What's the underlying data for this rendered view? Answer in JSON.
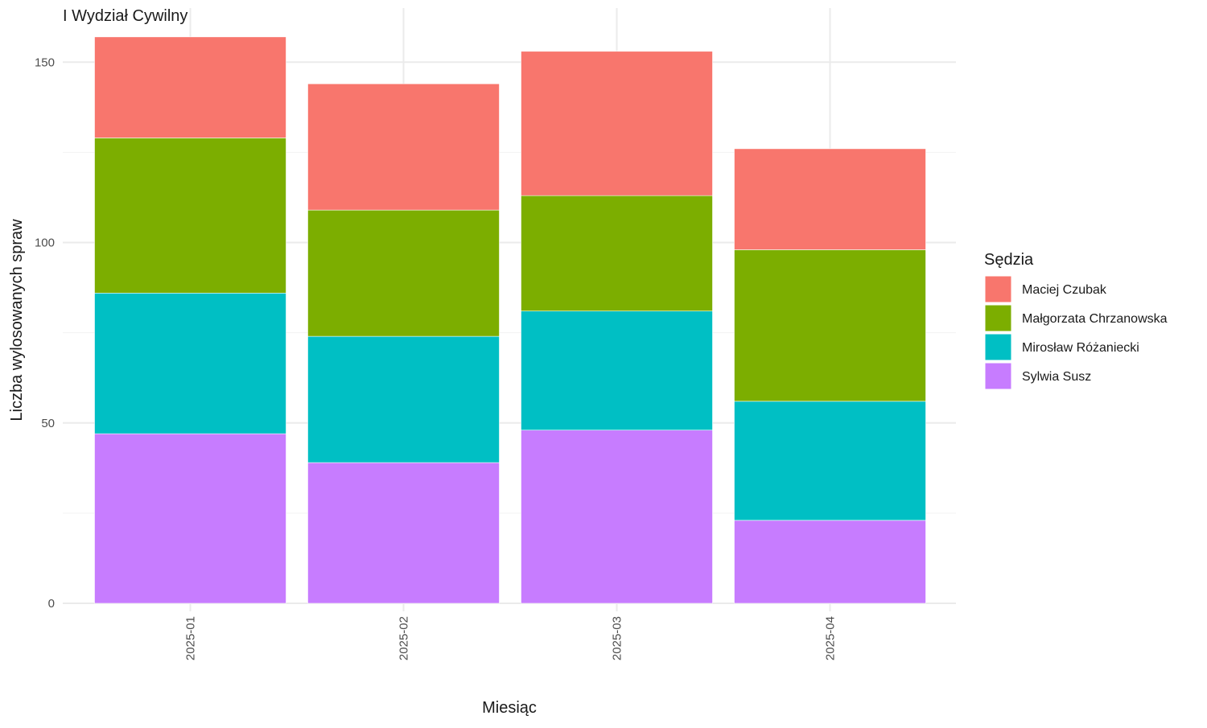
{
  "chart_data": {
    "type": "bar",
    "stacked": true,
    "title": "I Wydział Cywilny",
    "xlabel": "Miesiąc",
    "ylabel": "Liczba wylosowanych spraw",
    "categories": [
      "2025-01",
      "2025-02",
      "2025-03",
      "2025-04"
    ],
    "ylim": [
      0,
      160
    ],
    "yticks": [
      0,
      50,
      100,
      150
    ],
    "grid": true,
    "legend": {
      "title": "Sędzia",
      "position": "right"
    },
    "series": [
      {
        "name": "Sylwia Susz",
        "color": "#C77CFF",
        "values": [
          47,
          39,
          48,
          23
        ]
      },
      {
        "name": "Mirosław Różaniecki",
        "color": "#00BFC4",
        "values": [
          39,
          35,
          33,
          33
        ]
      },
      {
        "name": "Małgorzata Chrzanowska",
        "color": "#7CAE00",
        "values": [
          43,
          35,
          32,
          42
        ]
      },
      {
        "name": "Maciej Czubak",
        "color": "#F8766D",
        "values": [
          28,
          35,
          40,
          28
        ]
      }
    ],
    "legend_order": [
      "Maciej Czubak",
      "Małgorzata Chrzanowska",
      "Mirosław Różaniecki",
      "Sylwia Susz"
    ]
  }
}
